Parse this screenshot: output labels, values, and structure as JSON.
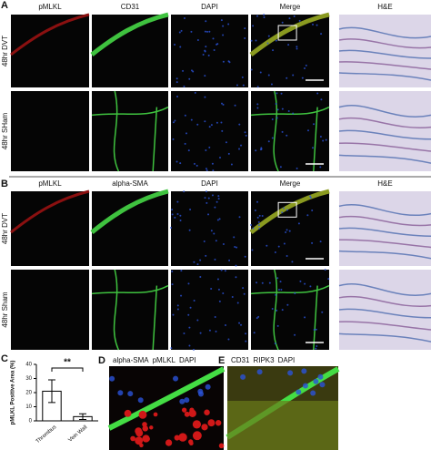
{
  "panel_a": {
    "letter": "A",
    "columns": [
      "pMLKL",
      "CD31",
      "DAPI",
      "Merge",
      "H&E"
    ],
    "rows": [
      "48hr DVT",
      "48hr SHam"
    ]
  },
  "panel_b": {
    "letter": "B",
    "columns": [
      "pMLKL",
      "alpha-SMA",
      "DAPI",
      "Merge",
      "H&E"
    ],
    "rows": [
      "48hr DVT",
      "48hr Sham"
    ]
  },
  "panel_c": {
    "letter": "C",
    "chart": {
      "type": "bar",
      "y_label": "pMLKL Positive Area (%)",
      "categories": [
        "Thrombus",
        "Vein Wall"
      ],
      "values": [
        21,
        3
      ],
      "errors": [
        8,
        2
      ],
      "color": "#ffffff",
      "ylim": [
        0,
        40
      ],
      "yticks": [
        0,
        10,
        20,
        30,
        40
      ],
      "annotation": "**"
    }
  },
  "panel_d": {
    "letter": "D",
    "stains": [
      {
        "name": "alpha-SMA",
        "color": "#33cc33"
      },
      {
        "name": "pMLKL",
        "color": "#e8202a"
      },
      {
        "name": "DAPI",
        "color": "#2a52d8"
      }
    ]
  },
  "panel_e": {
    "letter": "E",
    "stains": [
      {
        "name": "CD31",
        "color": "#33cc33"
      },
      {
        "name": "RIPK3",
        "color": "#e8202a"
      },
      {
        "name": "DAPI",
        "color": "#2a52d8"
      }
    ]
  }
}
